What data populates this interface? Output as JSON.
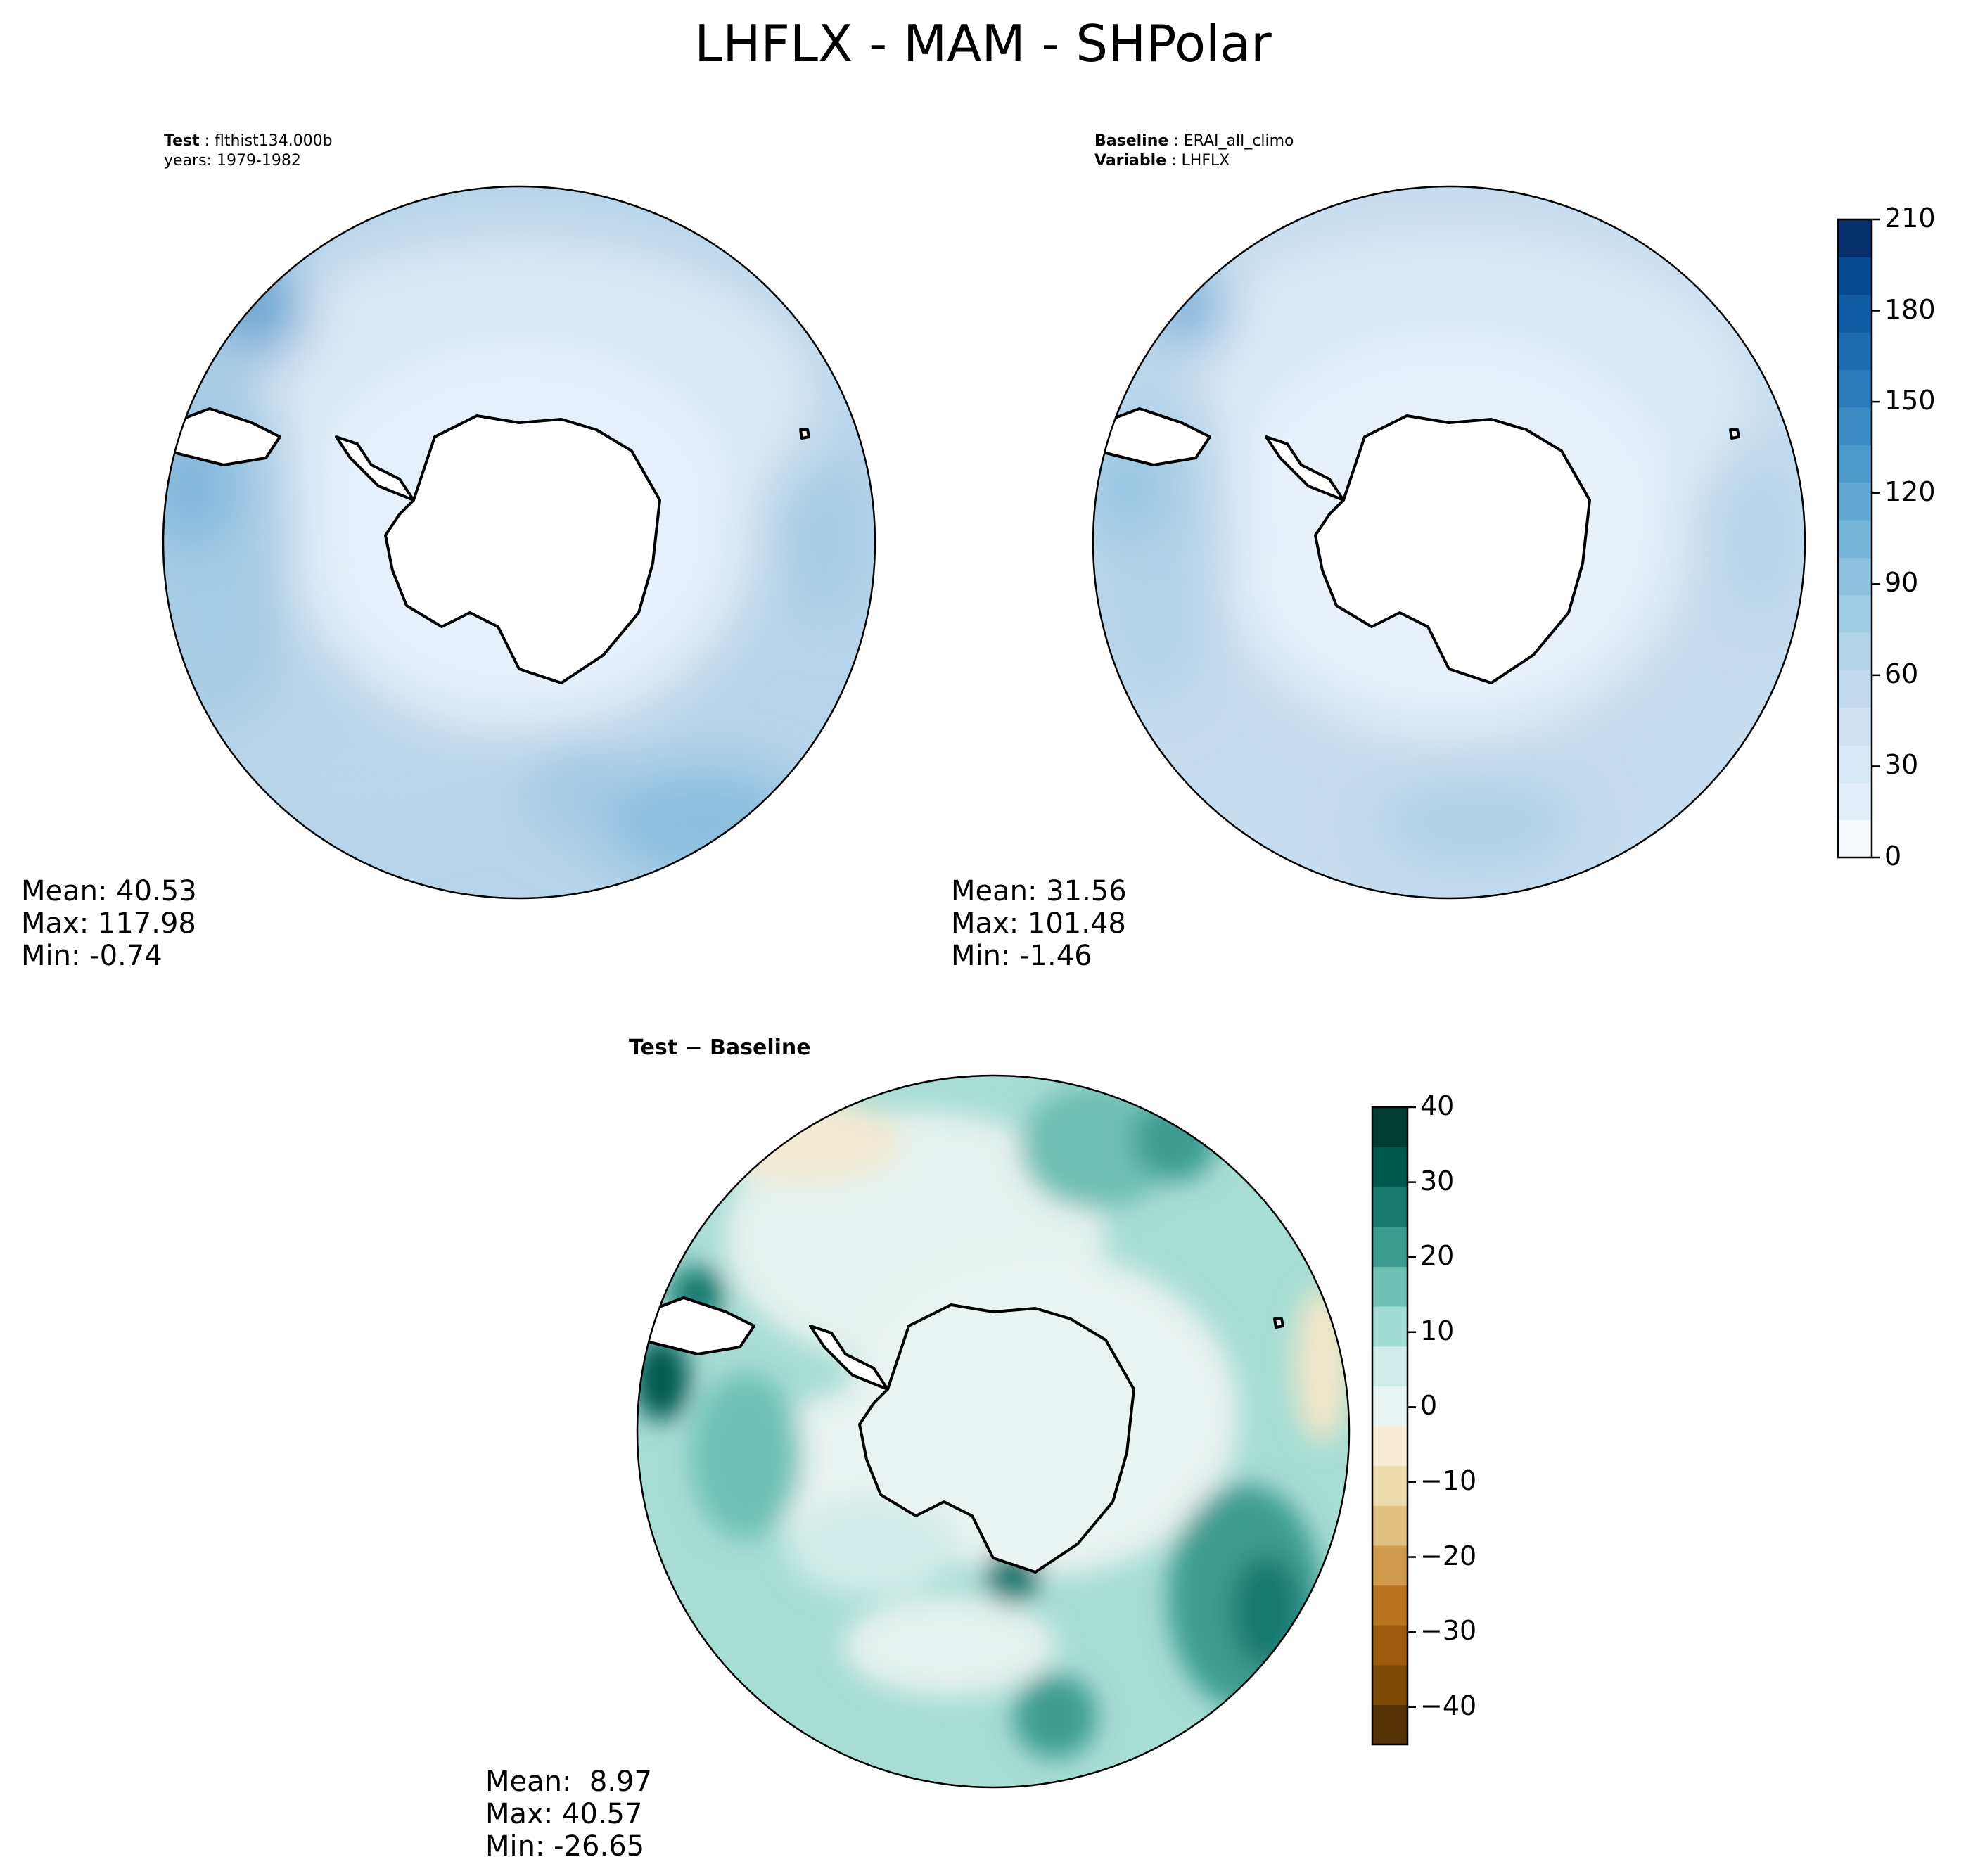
{
  "title": "LHFLX - MAM - SHPolar",
  "panels": {
    "test": {
      "label_key": "Test",
      "label_value": "flthist134.000b",
      "label_line2": "years: 1979-1982",
      "mean": "Mean: 40.53",
      "max": "Max: 117.98",
      "min": "Min: -0.74"
    },
    "baseline": {
      "label_key": "Baseline",
      "label_value": "ERAI_all_climo",
      "label2_key": "Variable",
      "label2_value": "LHFLX",
      "mean": "Mean: 31.56",
      "max": "Max: 101.48",
      "min": "Min: -1.46"
    },
    "diff": {
      "title": "Test − Baseline",
      "mean": "Mean:  8.97",
      "max": "Max: 40.57",
      "min": "Min: -26.65"
    }
  },
  "colors": {
    "blues": [
      "#f7fbff",
      "#e3eef9",
      "#d9e8f5",
      "#cfe1f2",
      "#c2d9ee",
      "#b3d3e8",
      "#a1cbe2",
      "#8dc1dd",
      "#76b4d8",
      "#62a8d3",
      "#4e9acb",
      "#3b8bc2",
      "#2b7bba",
      "#1d6cb1",
      "#115ca5",
      "#084b93",
      "#08306b"
    ],
    "brbg": [
      "#543005",
      "#7d4a08",
      "#9c5b0d",
      "#b8741f",
      "#cf9a4c",
      "#e0c07f",
      "#eedbab",
      "#f6ecd4",
      "#e9f3f1",
      "#d0ece8",
      "#a2dcd3",
      "#70c2b5",
      "#3d9c90",
      "#17796f",
      "#00594f",
      "#003c30"
    ]
  },
  "chart_data": [
    {
      "type": "heatmap",
      "projection": "south-polar-stereographic",
      "name": "test",
      "colormap": "Blues",
      "colorbar_ticks": [
        0,
        30,
        60,
        90,
        120,
        150,
        180,
        210
      ],
      "levels_range": [
        0,
        210
      ],
      "mean": 40.53,
      "max": 117.98,
      "min": -0.74
    },
    {
      "type": "heatmap",
      "projection": "south-polar-stereographic",
      "name": "baseline",
      "colormap": "Blues",
      "colorbar_ticks": [
        0,
        30,
        60,
        90,
        120,
        150,
        180,
        210
      ],
      "levels_range": [
        0,
        210
      ],
      "mean": 31.56,
      "max": 101.48,
      "min": -1.46
    },
    {
      "type": "heatmap",
      "projection": "south-polar-stereographic",
      "name": "diff",
      "colormap": "BrBG",
      "colorbar_ticks": [
        -40,
        -30,
        -20,
        -10,
        0,
        10,
        20,
        30,
        40
      ],
      "colorbar_tick_labels": [
        "−40",
        "−30",
        "−20",
        "−10",
        "0",
        "10",
        "20",
        "30",
        "40"
      ],
      "levels_range": [
        -45,
        40
      ],
      "mean": 8.97,
      "max": 40.57,
      "min": -26.65
    }
  ]
}
